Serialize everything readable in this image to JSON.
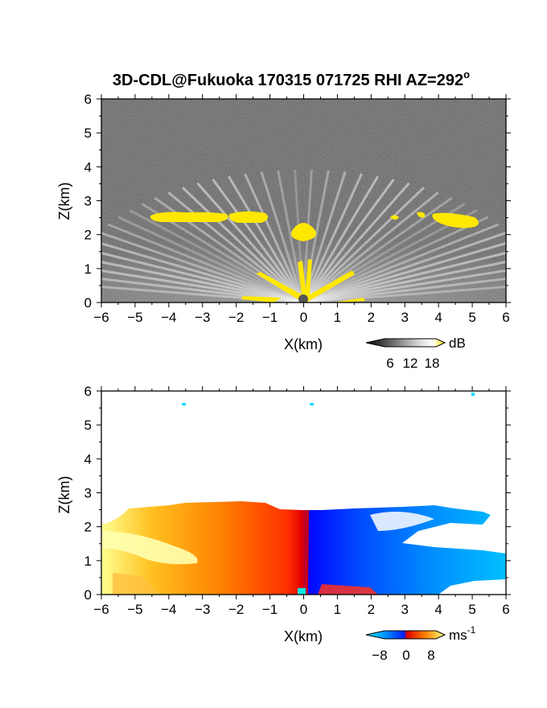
{
  "chart_data": [
    {
      "type": "heatmap",
      "panel": "reflectivity",
      "title": "3D-CDL@Fukuoka 170315 071725 RHI AZ=292",
      "title_superscript": "o",
      "xlabel": "X(km)",
      "ylabel": "Z(km)",
      "xlim": [
        -6,
        6
      ],
      "ylim": [
        0,
        6
      ],
      "xticks": [
        "-6",
        "-5",
        "-4",
        "-3",
        "-2",
        "-1",
        "0",
        "1",
        "2",
        "3",
        "4",
        "5",
        "6"
      ],
      "yticks": [
        "0",
        "1",
        "2",
        "3",
        "4",
        "5",
        "6"
      ],
      "colorbar": {
        "label": "dB",
        "ticks": [
          "6",
          "12",
          "18"
        ],
        "range": [
          0,
          20
        ],
        "colormap": "gray-to-yellow"
      },
      "features": [
        {
          "name": "cloud base layer",
          "z_km": 2.5,
          "x_km": [
            -4.5,
            5.5
          ],
          "value_db": 20
        },
        {
          "name": "near-radar clutter",
          "x_km": [
            -1.5,
            1.5
          ],
          "z_km": [
            0,
            1.0
          ],
          "value_db": 20
        },
        {
          "name": "elevated echo",
          "x_km": 0,
          "z_km": 2.1,
          "value_db": 20
        }
      ],
      "grid": false
    },
    {
      "type": "heatmap",
      "panel": "doppler_velocity",
      "xlabel": "X(km)",
      "ylabel": "Z(km)",
      "xlim": [
        -6,
        6
      ],
      "ylim": [
        0,
        6
      ],
      "xticks": [
        "-6",
        "-5",
        "-4",
        "-3",
        "-2",
        "-1",
        "0",
        "1",
        "2",
        "3",
        "4",
        "5",
        "6"
      ],
      "yticks": [
        "0",
        "1",
        "2",
        "3",
        "4",
        "5",
        "6"
      ],
      "colorbar": {
        "label": "ms",
        "label_superscript": "-1",
        "ticks": [
          "-8",
          "0",
          "8"
        ],
        "range": [
          -10,
          10
        ],
        "colormap": "cyan-blue-red-yellow"
      },
      "features": [
        {
          "name": "negative velocities",
          "x_km": [
            0,
            6
          ],
          "z_km": [
            0,
            2.5
          ],
          "velocity_ms": [
            -8,
            0
          ]
        },
        {
          "name": "positive velocities",
          "x_km": [
            -6,
            0
          ],
          "z_km": [
            0,
            2.7
          ],
          "velocity_ms": [
            0,
            8
          ]
        }
      ],
      "grid": false
    }
  ],
  "colors": {
    "background": "#ffffff",
    "highlight": "#ffe800",
    "velocity_low": "#00e0ff",
    "velocity_mid_neg": "#0040ff",
    "velocity_zero": "#e00000",
    "velocity_high": "#ffff80"
  }
}
